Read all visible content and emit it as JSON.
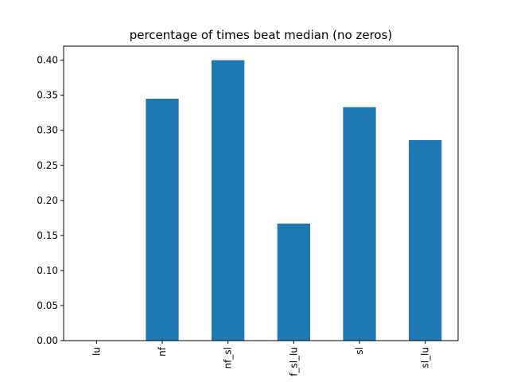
{
  "chart_data": {
    "type": "bar",
    "title": "percentage of times beat median (no zeros)",
    "xlabel": "",
    "ylabel": "",
    "categories": [
      "lu",
      "nf",
      "nf_sl",
      "f_sl_lu",
      "sl",
      "sl_lu"
    ],
    "values": [
      0.0,
      0.345,
      0.4,
      0.167,
      0.333,
      0.286
    ],
    "ylim": [
      0,
      0.42
    ],
    "yticks": [
      "0.00",
      "0.05",
      "0.10",
      "0.15",
      "0.20",
      "0.25",
      "0.30",
      "0.35",
      "0.40"
    ],
    "bar_color": "#1f77b4",
    "grid": false,
    "legend": "none"
  }
}
